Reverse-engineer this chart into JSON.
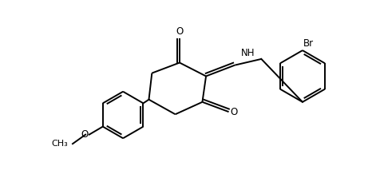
{
  "background": "#ffffff",
  "line_color": "#000000",
  "line_width": 1.4,
  "font_size": 8.5,
  "figsize": [
    4.66,
    2.18
  ],
  "dpi": 100,
  "xlim": [
    0,
    4.66
  ],
  "ylim": [
    0,
    2.18
  ]
}
